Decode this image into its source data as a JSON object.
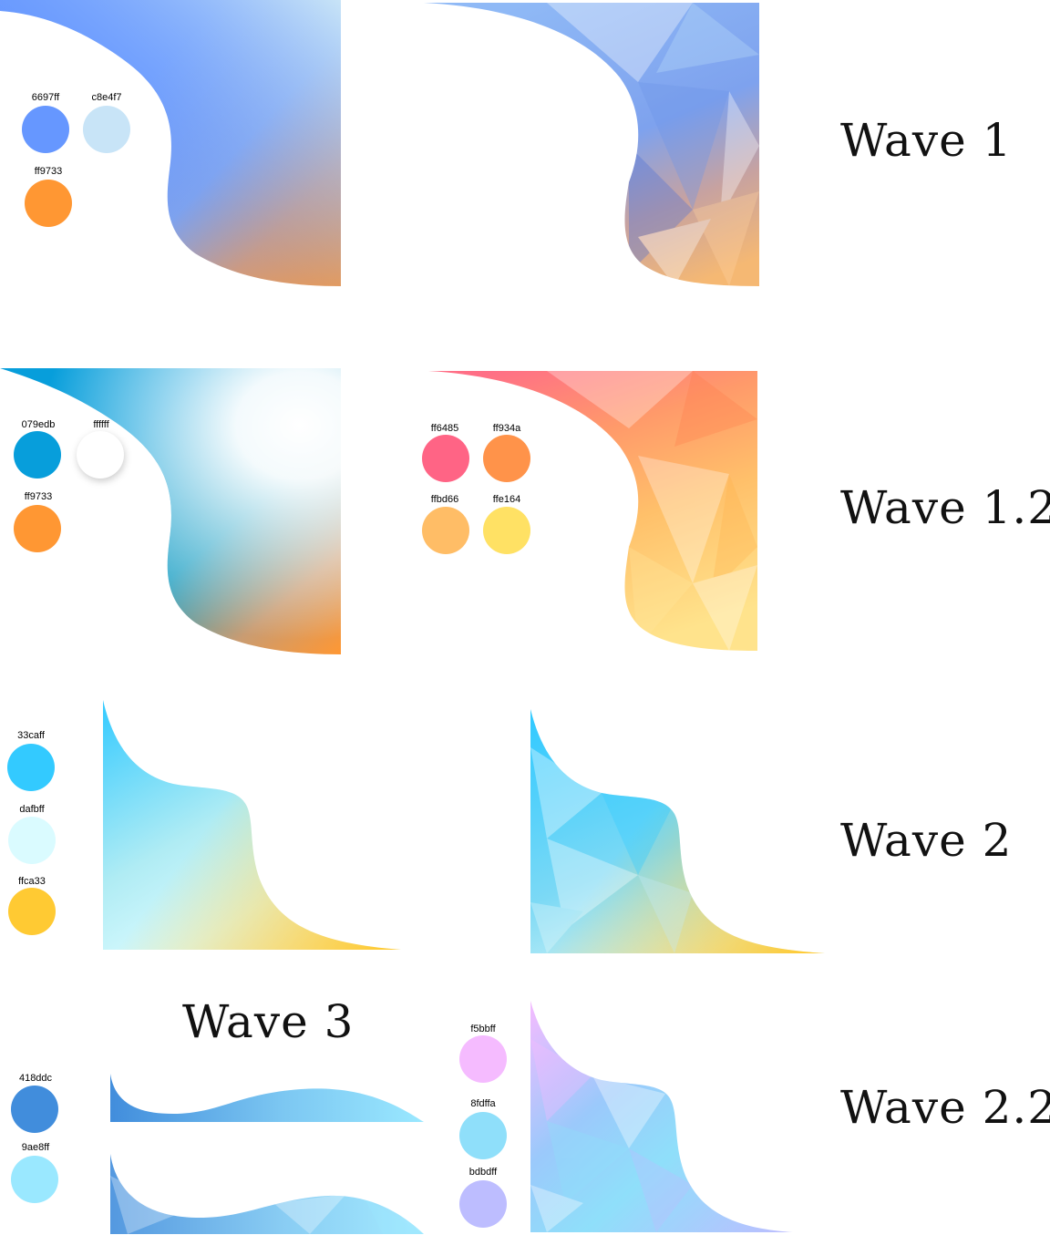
{
  "titles": {
    "wave1": "Wave 1",
    "wave12": "Wave 1.2",
    "wave2": "Wave 2",
    "wave22": "Wave 2.2",
    "wave3": "Wave 3"
  },
  "palettes": {
    "wave1": [
      {
        "label": "6697ff",
        "color": "#6697ff"
      },
      {
        "label": "c8e4f7",
        "color": "#c8e4f7"
      },
      {
        "label": "ff9733",
        "color": "#ff9733"
      }
    ],
    "wave12_left": [
      {
        "label": "079edb",
        "color": "#079edb"
      },
      {
        "label": "ffffff",
        "color": "#ffffff"
      },
      {
        "label": "ff9733",
        "color": "#ff9733"
      }
    ],
    "wave12_right": [
      {
        "label": "ff6485",
        "color": "#ff6485"
      },
      {
        "label": "ff934a",
        "color": "#ff934a"
      },
      {
        "label": "ffbd66",
        "color": "#ffbd66"
      },
      {
        "label": "ffe164",
        "color": "#ffe164"
      }
    ],
    "wave2": [
      {
        "label": "33caff",
        "color": "#33caff"
      },
      {
        "label": "dafbff",
        "color": "#dafbff"
      },
      {
        "label": "ffca33",
        "color": "#ffca33"
      }
    ],
    "wave3": [
      {
        "label": "418ddc",
        "color": "#418ddc"
      },
      {
        "label": "9ae8ff",
        "color": "#9ae8ff"
      }
    ],
    "wave22": [
      {
        "label": "f5bbff",
        "color": "#f5bbff"
      },
      {
        "label": "8fdffa",
        "color": "#8fdffa"
      },
      {
        "label": "bdbdff",
        "color": "#bdbdff"
      }
    ]
  }
}
